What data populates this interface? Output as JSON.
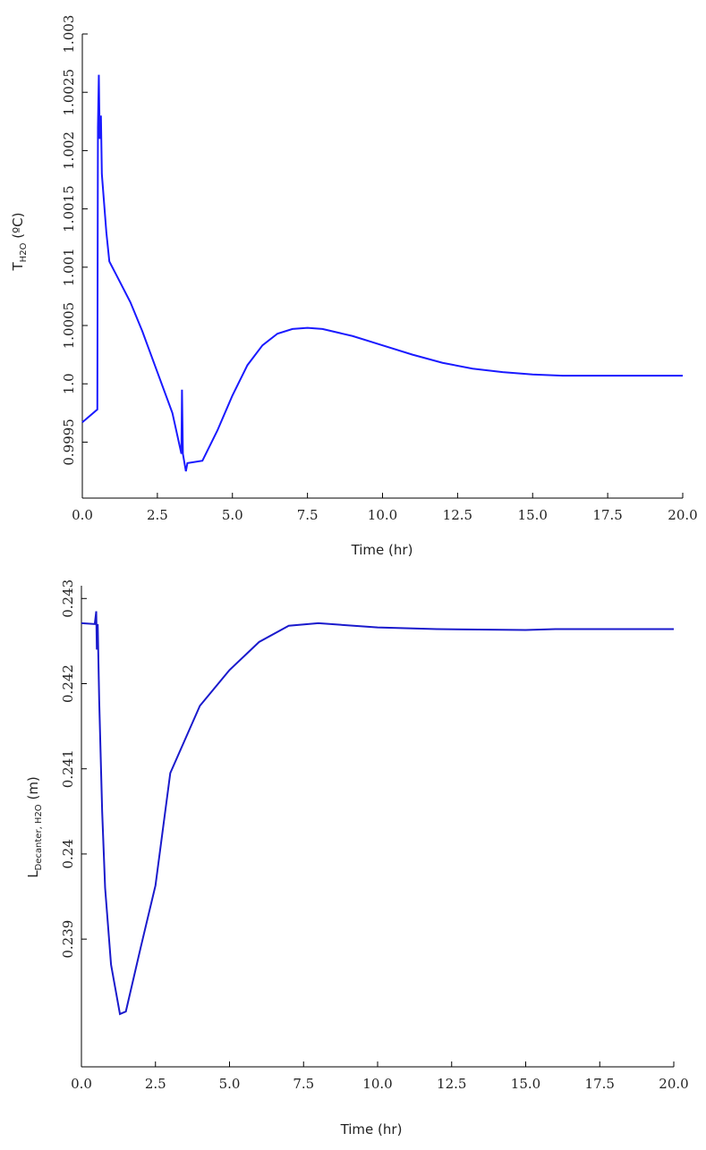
{
  "chart_data": [
    {
      "type": "line",
      "x_label": "Time (hr)",
      "y_label": {
        "main": "T",
        "sub": "H2O",
        "unit": "(ºC)"
      },
      "x": [
        0,
        0.5,
        0.52,
        0.55,
        0.58,
        0.62,
        0.65,
        0.8,
        0.9,
        1.2,
        1.6,
        2.0,
        2.5,
        3.0,
        3.3,
        3.32,
        3.35,
        3.45,
        3.5,
        4.0,
        4.5,
        5.0,
        5.5,
        6.0,
        6.5,
        7.0,
        7.5,
        8.0,
        9.0,
        10.0,
        11.0,
        12.0,
        13.0,
        14.0,
        15.0,
        16.0,
        18.0,
        20.0
      ],
      "series": [
        {
          "color": "#1a1aff",
          "values": [
            0.99967,
            0.99978,
            1.0022,
            1.00265,
            1.0021,
            1.0023,
            1.0018,
            1.0013,
            1.00105,
            1.0009,
            1.0007,
            1.00045,
            1.0001,
            0.99975,
            0.9994,
            0.99995,
            0.9994,
            0.99925,
            0.99932,
            0.99934,
            0.9996,
            0.9999,
            1.00016,
            1.00033,
            1.00043,
            1.00047,
            1.00048,
            1.00047,
            1.00041,
            1.00033,
            1.00025,
            1.00018,
            1.00013,
            1.0001,
            1.00008,
            1.00007,
            1.00007,
            1.00007
          ]
        }
      ],
      "xlim": [
        0,
        20
      ],
      "ylim": [
        0.99902,
        1.003
      ],
      "xticks": [
        {
          "value": 0,
          "label": "0.0"
        },
        2.5,
        {
          "value": 5,
          "label": "5.0"
        },
        7.5,
        {
          "value": 10,
          "label": "10.0"
        },
        12.5,
        {
          "value": 15,
          "label": "15.0"
        },
        17.5,
        {
          "value": 20,
          "label": "20.0"
        }
      ],
      "yticks": [
        0.9995,
        {
          "value": 1,
          "label": "1.0"
        },
        1.0005,
        1.001,
        1.0015,
        1.002,
        1.0025,
        1.003
      ]
    },
    {
      "type": "line",
      "x_label": "Time (hr)",
      "y_label": {
        "main": "L",
        "sub": "Decanter, H2O",
        "unit": "(m)"
      },
      "x": [
        0,
        0.45,
        0.5,
        0.52,
        0.55,
        0.6,
        0.7,
        0.8,
        1.0,
        1.3,
        1.5,
        2.0,
        2.5,
        3.0,
        4.0,
        5.0,
        6.0,
        7.0,
        8.0,
        10.0,
        12.0,
        15.0,
        16.0,
        20.0
      ],
      "series": [
        {
          "color": "#1a1acc",
          "values": [
            0.24271,
            0.2427,
            0.24285,
            0.2424,
            0.2427,
            0.2418,
            0.2405,
            0.2396,
            0.2387,
            0.23812,
            0.23815,
            0.2389,
            0.23963,
            0.24095,
            0.24174,
            0.24216,
            0.24249,
            0.24268,
            0.24271,
            0.24266,
            0.24264,
            0.24263,
            0.24264,
            0.24264
          ]
        }
      ],
      "xlim": [
        0,
        20
      ],
      "ylim": [
        0.2375,
        0.24315
      ],
      "xticks": [
        {
          "value": 0,
          "label": "0.0"
        },
        2.5,
        {
          "value": 5,
          "label": "5.0"
        },
        7.5,
        {
          "value": 10,
          "label": "10.0"
        },
        12.5,
        {
          "value": 15,
          "label": "15.0"
        },
        17.5,
        {
          "value": 20,
          "label": "20.0"
        }
      ],
      "yticks": [
        0.239,
        0.24,
        0.241,
        0.242,
        0.243
      ]
    }
  ]
}
